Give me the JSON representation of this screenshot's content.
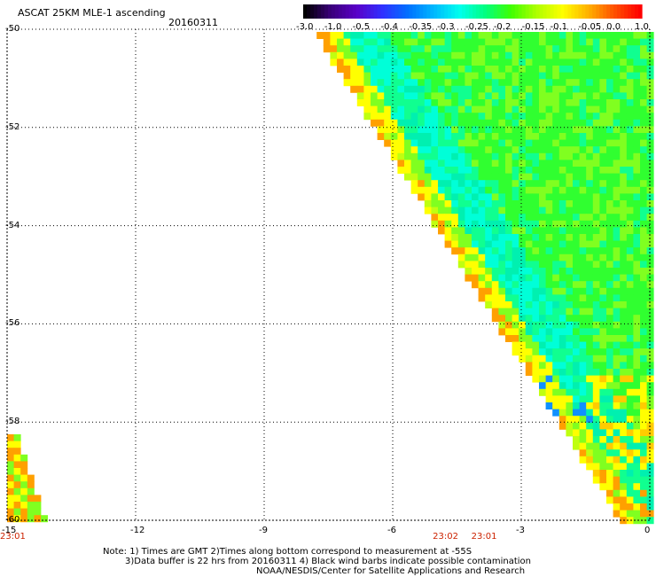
{
  "header": {
    "title": "ASCAT 25KM MLE-1 ascending",
    "date": "20160311"
  },
  "colorbar": {
    "labels": [
      "-3.0",
      "-1.0",
      "-0.5",
      "-0.4",
      "-0.35",
      "-0.3",
      "-0.25",
      "-0.2",
      "-0.15",
      "-0.1",
      "-0.05",
      "0.0",
      "1.0"
    ],
    "colors": [
      "#000000",
      "#3a007a",
      "#5a00c8",
      "#3030ff",
      "#0070ff",
      "#00b8ff",
      "#00ffee",
      "#00ff80",
      "#40ff00",
      "#b0ff00",
      "#ffff00",
      "#ffb000",
      "#ff5000",
      "#ff0000"
    ]
  },
  "map": {
    "lon_ticks": [
      "-15",
      "-12",
      "-9",
      "-6",
      "-3",
      "0"
    ],
    "lat_ticks": [
      "-50",
      "-52",
      "-54",
      "-56",
      "-58",
      "-60"
    ],
    "lon_range": [
      -15,
      0
    ],
    "lat_range": [
      -60,
      -50
    ],
    "grid": "dotted"
  },
  "times": [
    {
      "label": "23:01",
      "lon": -15
    },
    {
      "label": "23:02",
      "lon": -4.9
    },
    {
      "label": "23:01",
      "lon": -4
    }
  ],
  "notes": {
    "line1": "Note: 1) Times are GMT 2)Times along bottom correspond to measurement at -55S",
    "line2": "3)Data buffer is 22 hrs from 20160311 4) Black wind barbs indicate possible contamination",
    "line3": "NOAA/NESDIS/Center for Satellite Applications and Research"
  }
}
